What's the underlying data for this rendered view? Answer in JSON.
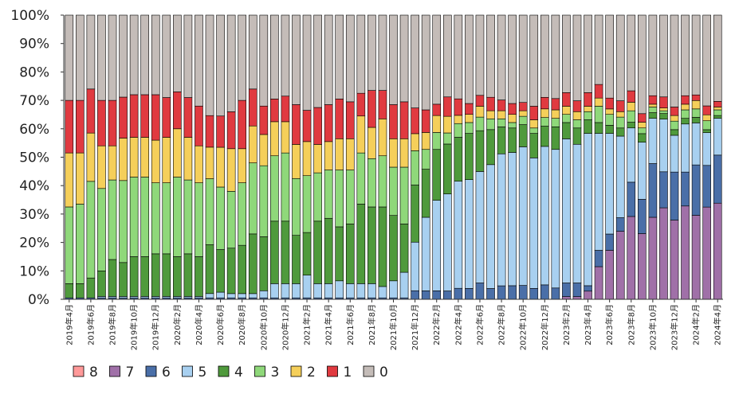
{
  "chart_data": {
    "type": "stacked-bar-100",
    "title": "",
    "xlabel": "",
    "ylabel": "",
    "ylim": [
      0,
      100
    ],
    "yticks": [
      "0%",
      "10%",
      "20%",
      "30%",
      "40%",
      "50%",
      "60%",
      "70%",
      "80%",
      "90%",
      "100%"
    ],
    "categories": [
      "2019年4月",
      "2019年5月",
      "2019年6月",
      "2019年7月",
      "2019年8月",
      "2019年9月",
      "2019年10月",
      "2019年11月",
      "2019年12月",
      "2020年1月",
      "2020年2月",
      "2020年3月",
      "2020年4月",
      "2020年5月",
      "2020年6月",
      "2020年7月",
      "2020年8月",
      "2020年9月",
      "2020年10月",
      "2020年11月",
      "2020年12月",
      "2021年1月",
      "2021年2月",
      "2021年3月",
      "2021年4月",
      "2021年5月",
      "2021年6月",
      "2021年7月",
      "2021年8月",
      "2021年9月",
      "2021年10月",
      "2021年11月",
      "2021年12月",
      "2022年1月",
      "2022年2月",
      "2022年3月",
      "2022年4月",
      "2022年5月",
      "2022年6月",
      "2022年7月",
      "2022年8月",
      "2022年9月",
      "2022年10月",
      "2022年11月",
      "2022年12月",
      "2023年1月",
      "2023年2月",
      "2023年3月",
      "2023年4月",
      "2023年5月",
      "2023年6月",
      "2023年7月",
      "2023年8月",
      "2023年9月",
      "2023年10月",
      "2023年11月",
      "2023年12月",
      "2024年1月",
      "2024年2月",
      "2024年3月",
      "2024年4月"
    ],
    "x_tick_labels": [
      "2019年4月",
      "2019年6月",
      "2019年8月",
      "2019年10月",
      "2019年12月",
      "2020年2月",
      "2020年4月",
      "2020年6月",
      "2020年8月",
      "2020年10月",
      "2020年12月",
      "2021年2月",
      "2021年4月",
      "2021年6月",
      "2021年8月",
      "2021年10月",
      "2021年12月",
      "2022年2月",
      "2022年4月",
      "2022年6月",
      "2022年8月",
      "2022年10月",
      "2022年12月",
      "2023年2月",
      "2023年4月",
      "2023年6月",
      "2023年8月",
      "2023年10月",
      "2023年12月",
      "2024年2月",
      "2024年4月"
    ],
    "legend_order": [
      "8",
      "7",
      "6",
      "5",
      "4",
      "3",
      "2",
      "1",
      "0"
    ],
    "series": [
      {
        "name": "8",
        "color": "#ff9999",
        "values": [
          0,
          0,
          0,
          0,
          0,
          0,
          0,
          0,
          0,
          0,
          0,
          0,
          0,
          0,
          0,
          0,
          0,
          0,
          0,
          0,
          0,
          0,
          0,
          0,
          0,
          0,
          0,
          0,
          0,
          0,
          0,
          0,
          0,
          0,
          0,
          0,
          0,
          0,
          0,
          0,
          0,
          0,
          0,
          0,
          0,
          0,
          0,
          0,
          0,
          0,
          0,
          0,
          0,
          0,
          0,
          0,
          0,
          0,
          0,
          0,
          0
        ]
      },
      {
        "name": "7",
        "color": "#a070a8",
        "values": [
          0,
          0,
          0,
          0,
          0,
          0,
          0,
          0,
          0,
          0,
          0,
          0,
          0,
          0,
          0,
          0,
          0,
          0,
          0,
          0,
          0,
          0,
          0,
          0,
          0,
          0,
          0,
          0,
          0,
          0,
          0,
          0,
          0,
          0,
          0,
          0,
          0,
          0,
          0,
          0,
          0,
          0,
          0,
          0,
          0,
          0,
          1,
          1,
          3,
          12,
          18,
          25,
          29,
          23,
          29,
          33,
          28,
          33,
          30,
          31,
          34
        ]
      },
      {
        "name": "6",
        "color": "#4a6fa8",
        "values": [
          0.5,
          0.5,
          0.5,
          0.5,
          0.5,
          0.5,
          0.5,
          0.5,
          0.5,
          0.5,
          0.5,
          0.5,
          0.5,
          0.5,
          0.5,
          0.5,
          0.5,
          0.5,
          0.5,
          0.5,
          0.5,
          0.5,
          0.5,
          0.5,
          0.5,
          0.5,
          0.5,
          0.5,
          0.5,
          0.5,
          0.5,
          0.5,
          3,
          3,
          3,
          3,
          4,
          4,
          6,
          4,
          5,
          5,
          5,
          4,
          5,
          4,
          5,
          5,
          2,
          6,
          6,
          5,
          12,
          12,
          19,
          13,
          17,
          12,
          18,
          14,
          17
        ]
      },
      {
        "name": "5",
        "color": "#a8d0f0",
        "values": [
          0,
          0,
          0,
          0.5,
          0.5,
          0.5,
          0.5,
          0.5,
          0.5,
          0.5,
          0.5,
          0.5,
          0.5,
          1.5,
          2,
          1.5,
          1.5,
          1.5,
          2.5,
          5,
          5,
          5,
          8,
          5,
          5,
          6,
          5,
          5,
          5,
          4,
          6,
          9,
          17,
          26,
          32,
          35,
          39,
          40,
          41,
          46,
          49,
          49,
          50,
          48,
          48,
          49,
          53,
          51,
          56,
          43,
          37,
          30,
          19,
          20,
          16,
          19,
          13,
          17,
          15,
          11,
          13
        ]
      },
      {
        "name": "4",
        "color": "#4f9a3c",
        "values": [
          5,
          5,
          7,
          9,
          13,
          12,
          14,
          14,
          15,
          15,
          14,
          15,
          14,
          17,
          15,
          16,
          17,
          21,
          19,
          22,
          22,
          17,
          15,
          22,
          23,
          19,
          21,
          28,
          27,
          28,
          23,
          17,
          20,
          17,
          18,
          18,
          16,
          17,
          15,
          13,
          10,
          9,
          8,
          9,
          7,
          8,
          6,
          6,
          5,
          4,
          3,
          3,
          2,
          3,
          2,
          2,
          2,
          2,
          2,
          1,
          1
        ]
      },
      {
        "name": "3",
        "color": "#8fd87a",
        "values": [
          27,
          28,
          34,
          29,
          28,
          29,
          28,
          28,
          25,
          25,
          28,
          26,
          26,
          23,
          22,
          20,
          22,
          25,
          25,
          23,
          24,
          20,
          20,
          17,
          17,
          20,
          19,
          18,
          17,
          18,
          17,
          20,
          12,
          7,
          6,
          4,
          5,
          4,
          5,
          4,
          3,
          2,
          3,
          2,
          3,
          3,
          3,
          3,
          3,
          6,
          4,
          4,
          4,
          2,
          2,
          1,
          3,
          3,
          3,
          3,
          2
        ]
      },
      {
        "name": "2",
        "color": "#f5cf5a",
        "values": [
          19,
          18,
          17,
          15,
          12,
          15,
          14,
          14,
          15,
          16,
          17,
          15,
          13,
          11,
          14,
          15,
          12,
          13,
          11,
          12,
          11,
          12,
          12,
          10,
          10,
          11,
          11,
          13,
          11,
          13,
          10,
          10,
          6,
          6,
          6,
          6,
          3,
          3,
          4,
          3,
          3,
          3,
          2,
          3,
          3,
          3,
          3,
          3,
          2,
          3,
          2,
          2,
          3,
          2,
          1,
          1,
          2,
          2,
          3,
          2,
          1
        ]
      },
      {
        "name": "1",
        "color": "#e03a40",
        "values": [
          18.5,
          18.5,
          15.5,
          16,
          16,
          14.5,
          15,
          15,
          16,
          14,
          13,
          14,
          14,
          11,
          11,
          13,
          17,
          13,
          10,
          8,
          9,
          14,
          11,
          13,
          13,
          14,
          13,
          8,
          13,
          10,
          12,
          13,
          9,
          8,
          4,
          7,
          6,
          4,
          4,
          5,
          4,
          4,
          3,
          5,
          4,
          4,
          5,
          4,
          5,
          5,
          4,
          4,
          4,
          3,
          3,
          4,
          3,
          3,
          2,
          3,
          2
        ]
      },
      {
        "name": "0",
        "color": "#c4bcb8",
        "values": [
          30,
          30,
          26,
          30,
          30,
          29,
          28,
          28,
          28,
          29,
          27,
          29,
          32,
          35,
          35.5,
          34,
          30,
          26,
          32,
          29.5,
          28.5,
          31.5,
          33.5,
          32.5,
          31.5,
          29.5,
          30.5,
          27.5,
          26.5,
          26.5,
          31.5,
          30.5,
          32.5,
          33.5,
          31.5,
          29.5,
          30.5,
          32.5,
          29.5,
          30.5,
          31.5,
          32.5,
          31.5,
          33.5,
          28.5,
          29.5,
          28.5,
          31.5,
          28.5,
          25.5,
          30.5,
          31.5,
          26.5,
          34.5,
          28.5,
          29.5,
          32.5,
          28.5,
          28.5,
          30.5,
          30.5
        ]
      }
    ]
  }
}
